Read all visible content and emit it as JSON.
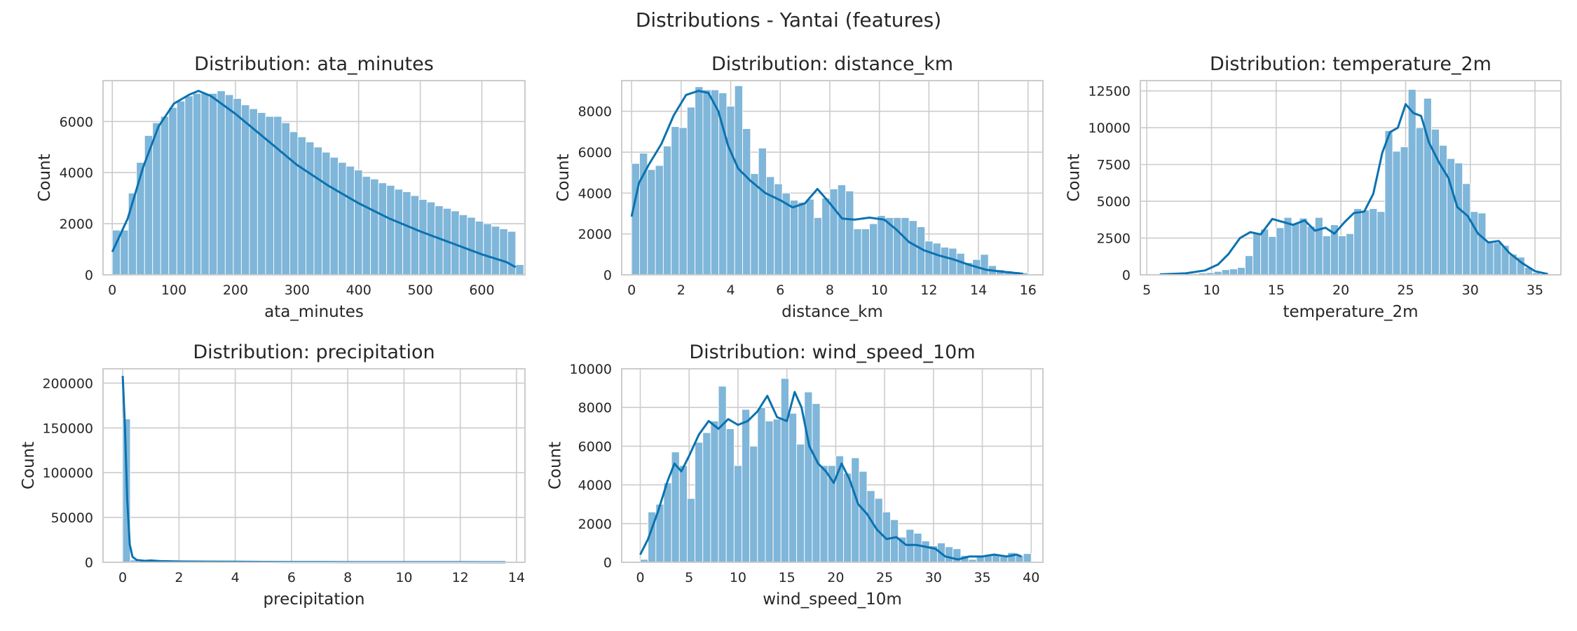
{
  "figure": {
    "title": "Distributions - Yantai (features)"
  },
  "colors": {
    "bar": "#7fb6d9",
    "bar_edge": "#ffffff",
    "kde": "#0a72b0",
    "grid": "#cccccc",
    "spine": "#cccccc"
  },
  "chart_data": [
    {
      "type": "histogram",
      "title": "Distribution: ata_minutes",
      "xlabel": "ata_minutes",
      "ylabel": "Count",
      "xlim": [
        -15,
        670
      ],
      "ylim": [
        0,
        7600
      ],
      "xticks": [
        0,
        100,
        200,
        300,
        400,
        500,
        600
      ],
      "yticks": [
        0,
        2000,
        4000,
        6000
      ],
      "bin_start": 0,
      "bin_width": 13.1,
      "values": [
        1750,
        1750,
        3200,
        4400,
        5450,
        5950,
        6200,
        6550,
        6800,
        7000,
        7100,
        7100,
        7100,
        7200,
        7050,
        6900,
        6650,
        6500,
        6350,
        6200,
        6200,
        5950,
        5600,
        5400,
        5200,
        5000,
        4800,
        4600,
        4400,
        4250,
        4100,
        3850,
        3750,
        3600,
        3500,
        3350,
        3250,
        3100,
        2950,
        2850,
        2700,
        2600,
        2500,
        2350,
        2250,
        2100,
        2000,
        1900,
        1800,
        1700,
        400
      ],
      "kde": [
        [
          0,
          900
        ],
        [
          25,
          2200
        ],
        [
          50,
          4200
        ],
        [
          75,
          5800
        ],
        [
          100,
          6700
        ],
        [
          125,
          7050
        ],
        [
          140,
          7200
        ],
        [
          160,
          7000
        ],
        [
          200,
          6300
        ],
        [
          250,
          5300
        ],
        [
          300,
          4300
        ],
        [
          350,
          3500
        ],
        [
          400,
          2800
        ],
        [
          450,
          2200
        ],
        [
          500,
          1700
        ],
        [
          550,
          1250
        ],
        [
          600,
          800
        ],
        [
          640,
          500
        ],
        [
          655,
          300
        ]
      ]
    },
    {
      "type": "histogram",
      "title": "Distribution: distance_km",
      "xlabel": "distance_km",
      "ylabel": "Count",
      "xlim": [
        -0.4,
        16.6
      ],
      "ylim": [
        0,
        9500
      ],
      "xticks": [
        0,
        2,
        4,
        6,
        8,
        10,
        12,
        14,
        16
      ],
      "yticks": [
        0,
        2000,
        4000,
        6000,
        8000
      ],
      "bin_start": 0,
      "bin_width": 0.32,
      "values": [
        5450,
        5950,
        5150,
        5350,
        6300,
        7250,
        7200,
        8200,
        9200,
        9050,
        9050,
        8900,
        8250,
        9250,
        7150,
        4950,
        6200,
        4800,
        4450,
        4000,
        3650,
        3550,
        3700,
        2800,
        3750,
        4200,
        4400,
        4100,
        2250,
        2250,
        2500,
        2900,
        2800,
        2800,
        2800,
        2650,
        2350,
        1650,
        1550,
        1350,
        1300,
        1050,
        600,
        750,
        1000,
        450,
        250,
        200,
        150,
        100
      ],
      "kde": [
        [
          0,
          2850
        ],
        [
          0.3,
          4500
        ],
        [
          0.7,
          5400
        ],
        [
          1.2,
          6400
        ],
        [
          1.7,
          7800
        ],
        [
          2.2,
          8800
        ],
        [
          2.7,
          9000
        ],
        [
          3.1,
          8900
        ],
        [
          3.5,
          8000
        ],
        [
          3.9,
          6300
        ],
        [
          4.3,
          5200
        ],
        [
          4.8,
          4600
        ],
        [
          5.4,
          4000
        ],
        [
          6.0,
          3650
        ],
        [
          6.5,
          3300
        ],
        [
          7.0,
          3500
        ],
        [
          7.5,
          4200
        ],
        [
          8.0,
          3500
        ],
        [
          8.5,
          2750
        ],
        [
          9.0,
          2700
        ],
        [
          9.6,
          2800
        ],
        [
          10.2,
          2700
        ],
        [
          10.7,
          2200
        ],
        [
          11.2,
          1600
        ],
        [
          11.8,
          1200
        ],
        [
          12.4,
          950
        ],
        [
          13.0,
          750
        ],
        [
          13.6,
          500
        ],
        [
          14.3,
          250
        ],
        [
          15.0,
          150
        ],
        [
          15.8,
          50
        ]
      ]
    },
    {
      "type": "histogram",
      "title": "Distribution: temperature_2m",
      "xlabel": "temperature_2m",
      "ylabel": "Count",
      "xlim": [
        4.5,
        37
      ],
      "ylim": [
        0,
        13200
      ],
      "xticks": [
        5,
        10,
        15,
        20,
        25,
        30,
        35
      ],
      "yticks": [
        0,
        2500,
        5000,
        7500,
        10000,
        12500
      ],
      "bin_start": 6,
      "bin_width": 0.6,
      "values": [
        20,
        30,
        40,
        60,
        80,
        120,
        150,
        230,
        350,
        400,
        500,
        1300,
        2800,
        3100,
        2600,
        3200,
        3900,
        3500,
        3850,
        3300,
        3900,
        2650,
        3400,
        2650,
        2800,
        4500,
        4400,
        4500,
        4300,
        9800,
        8400,
        8700,
        12600,
        10000,
        12000,
        9900,
        8800,
        7900,
        7600,
        6200,
        4300,
        4200,
        2300,
        2200,
        2000,
        1400,
        1200,
        500,
        150,
        30
      ],
      "kde": [
        [
          6,
          30
        ],
        [
          8,
          100
        ],
        [
          9.5,
          300
        ],
        [
          10.5,
          700
        ],
        [
          11.3,
          1400
        ],
        [
          12.2,
          2500
        ],
        [
          13.0,
          2900
        ],
        [
          13.8,
          2750
        ],
        [
          14.7,
          3800
        ],
        [
          15.5,
          3600
        ],
        [
          16.3,
          3400
        ],
        [
          17.2,
          3700
        ],
        [
          18.0,
          3000
        ],
        [
          18.8,
          3200
        ],
        [
          19.5,
          2800
        ],
        [
          20.3,
          3600
        ],
        [
          21.0,
          4200
        ],
        [
          21.8,
          4300
        ],
        [
          22.5,
          5500
        ],
        [
          23.2,
          8300
        ],
        [
          23.8,
          9700
        ],
        [
          24.4,
          10000
        ],
        [
          25.0,
          11600
        ],
        [
          25.6,
          11000
        ],
        [
          26.2,
          10800
        ],
        [
          26.8,
          9000
        ],
        [
          27.6,
          7600
        ],
        [
          28.3,
          6600
        ],
        [
          29.0,
          4600
        ],
        [
          29.8,
          4000
        ],
        [
          30.6,
          2800
        ],
        [
          31.4,
          2200
        ],
        [
          32.2,
          2300
        ],
        [
          33.0,
          1500
        ],
        [
          34.0,
          800
        ],
        [
          35.0,
          250
        ],
        [
          36,
          50
        ]
      ]
    },
    {
      "type": "histogram",
      "title": "Distribution: precipitation",
      "xlabel": "precipitation",
      "ylabel": "Count",
      "xlim": [
        -0.7,
        14.3
      ],
      "ylim": [
        0,
        216000
      ],
      "xticks": [
        0,
        2,
        4,
        6,
        8,
        10,
        12,
        14
      ],
      "yticks": [
        0,
        50000,
        100000,
        150000,
        200000
      ],
      "bin_start": 0,
      "bin_width": 0.27,
      "values": [
        160000,
        2500,
        1300,
        900,
        800,
        700,
        600,
        500,
        450,
        400,
        400,
        350,
        300,
        300,
        250,
        250,
        200,
        200,
        200,
        150,
        150,
        150,
        120,
        120,
        100,
        100,
        100,
        100,
        80,
        80,
        80,
        80,
        70,
        70,
        60,
        60,
        60,
        60,
        50,
        50,
        50,
        50,
        50,
        40,
        40,
        40,
        40,
        40,
        40,
        40
      ],
      "kde": [
        [
          0,
          208000
        ],
        [
          0.08,
          150000
        ],
        [
          0.16,
          70000
        ],
        [
          0.25,
          20000
        ],
        [
          0.35,
          6000
        ],
        [
          0.5,
          2500
        ],
        [
          0.8,
          1600
        ],
        [
          1.0,
          2000
        ],
        [
          1.3,
          1300
        ],
        [
          2.0,
          900
        ],
        [
          3.0,
          700
        ],
        [
          4.0,
          600
        ],
        [
          5.0,
          400
        ],
        [
          6.0,
          350
        ],
        [
          7.0,
          300
        ],
        [
          8.0,
          250
        ],
        [
          9.0,
          250
        ],
        [
          10.0,
          200
        ],
        [
          11.0,
          200
        ],
        [
          12.0,
          150
        ],
        [
          13.0,
          100
        ],
        [
          13.6,
          100
        ]
      ]
    },
    {
      "type": "histogram",
      "title": "Distribution: wind_speed_10m",
      "xlabel": "wind_speed_10m",
      "ylabel": "Count",
      "xlim": [
        -1.9,
        41.2
      ],
      "ylim": [
        0,
        10000
      ],
      "xticks": [
        0,
        5,
        10,
        15,
        20,
        25,
        30,
        35,
        40
      ],
      "yticks": [
        0,
        2000,
        4000,
        6000,
        8000,
        10000
      ],
      "bin_start": 0,
      "bin_width": 0.8,
      "values": [
        150,
        2600,
        3000,
        4100,
        5700,
        5000,
        3300,
        6200,
        6700,
        7300,
        9100,
        6900,
        5000,
        7900,
        6000,
        8000,
        7300,
        7400,
        9500,
        7700,
        6100,
        8800,
        8200,
        5000,
        5000,
        5500,
        4600,
        5400,
        4700,
        3700,
        3300,
        2600,
        2200,
        1300,
        1700,
        1500,
        1100,
        850,
        1000,
        800,
        700,
        350,
        150,
        350,
        350,
        400,
        300,
        500,
        350,
        450
      ],
      "kde": [
        [
          0,
          400
        ],
        [
          0.8,
          1200
        ],
        [
          1.8,
          2600
        ],
        [
          2.8,
          4200
        ],
        [
          3.5,
          5100
        ],
        [
          4.2,
          4700
        ],
        [
          5.0,
          5500
        ],
        [
          6.0,
          6600
        ],
        [
          7.0,
          7300
        ],
        [
          8.0,
          6900
        ],
        [
          9.0,
          7400
        ],
        [
          10.0,
          7100
        ],
        [
          11.0,
          7300
        ],
        [
          12.0,
          7800
        ],
        [
          13.0,
          8600
        ],
        [
          14.0,
          7500
        ],
        [
          15.0,
          7300
        ],
        [
          15.8,
          8800
        ],
        [
          16.5,
          8000
        ],
        [
          17.3,
          6000
        ],
        [
          18.2,
          5100
        ],
        [
          19.0,
          4700
        ],
        [
          19.8,
          4100
        ],
        [
          20.6,
          5100
        ],
        [
          21.4,
          4300
        ],
        [
          22.3,
          3000
        ],
        [
          23.2,
          2500
        ],
        [
          24.2,
          1700
        ],
        [
          25.2,
          1200
        ],
        [
          26.2,
          1300
        ],
        [
          27.2,
          900
        ],
        [
          28.2,
          900
        ],
        [
          29.2,
          800
        ],
        [
          30.2,
          700
        ],
        [
          31.2,
          300
        ],
        [
          32.5,
          150
        ],
        [
          33.7,
          300
        ],
        [
          35.0,
          300
        ],
        [
          36.2,
          400
        ],
        [
          37.5,
          300
        ],
        [
          38.5,
          400
        ],
        [
          39,
          300
        ]
      ]
    }
  ]
}
